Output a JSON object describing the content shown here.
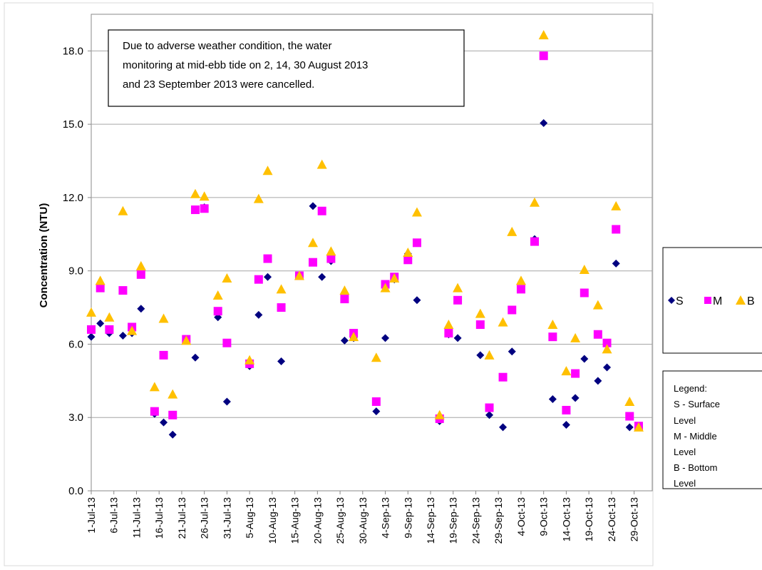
{
  "chart_data": {
    "type": "scatter",
    "title": "",
    "xlabel": "",
    "ylabel": "Concentration (NTU)",
    "ylim": [
      0,
      19.5
    ],
    "y_ticks": [
      "0.0",
      "3.0",
      "6.0",
      "9.0",
      "12.0",
      "15.0",
      "18.0"
    ],
    "y_tick_values": [
      0,
      3,
      6,
      9,
      12,
      15,
      18
    ],
    "grid": "horizontal",
    "x_range": [
      "2013-07-01",
      "2013-11-02"
    ],
    "x_ticks": [
      "1-Jul-13",
      "6-Jul-13",
      "11-Jul-13",
      "16-Jul-13",
      "21-Jul-13",
      "26-Jul-13",
      "31-Jul-13",
      "5-Aug-13",
      "10-Aug-13",
      "15-Aug-13",
      "20-Aug-13",
      "25-Aug-13",
      "30-Aug-13",
      "4-Sep-13",
      "9-Sep-13",
      "14-Sep-13",
      "19-Sep-13",
      "24-Sep-13",
      "29-Sep-13",
      "4-Oct-13",
      "9-Oct-13",
      "14-Oct-13",
      "19-Oct-13",
      "24-Oct-13",
      "29-Oct-13"
    ],
    "x_tick_dates": [
      "2013-07-01",
      "2013-07-06",
      "2013-07-11",
      "2013-07-16",
      "2013-07-21",
      "2013-07-26",
      "2013-07-31",
      "2013-08-05",
      "2013-08-10",
      "2013-08-15",
      "2013-08-20",
      "2013-08-25",
      "2013-08-30",
      "2013-09-04",
      "2013-09-09",
      "2013-09-14",
      "2013-09-19",
      "2013-09-24",
      "2013-09-29",
      "2013-10-04",
      "2013-10-09",
      "2013-10-14",
      "2013-10-19",
      "2013-10-24",
      "2013-10-29"
    ],
    "dates": [
      "2013-07-01",
      "2013-07-03",
      "2013-07-05",
      "2013-07-08",
      "2013-07-10",
      "2013-07-12",
      "2013-07-15",
      "2013-07-17",
      "2013-07-19",
      "2013-07-22",
      "2013-07-24",
      "2013-07-26",
      "2013-07-29",
      "2013-07-31",
      "2013-08-05",
      "2013-08-07",
      "2013-08-09",
      "2013-08-12",
      "2013-08-16",
      "2013-08-19",
      "2013-08-21",
      "2013-08-23",
      "2013-08-26",
      "2013-08-28",
      "2013-09-02",
      "2013-09-04",
      "2013-09-06",
      "2013-09-09",
      "2013-09-11",
      "2013-09-16",
      "2013-09-18",
      "2013-09-20",
      "2013-09-25",
      "2013-09-27",
      "2013-09-30",
      "2013-10-02",
      "2013-10-04",
      "2013-10-07",
      "2013-10-09",
      "2013-10-11",
      "2013-10-14",
      "2013-10-16",
      "2013-10-18",
      "2013-10-21",
      "2013-10-23",
      "2013-10-25",
      "2013-10-28",
      "2013-10-30"
    ],
    "series": [
      {
        "name": "S",
        "marker": "diamond",
        "color": "#000080",
        "values": [
          6.3,
          6.85,
          6.45,
          6.35,
          6.45,
          7.45,
          3.15,
          2.8,
          2.3,
          6.2,
          5.45,
          11.6,
          7.1,
          3.65,
          5.1,
          7.2,
          8.75,
          5.3,
          8.8,
          11.65,
          8.75,
          9.4,
          6.15,
          6.25,
          3.25,
          6.25,
          8.65,
          9.7,
          7.8,
          2.85,
          6.4,
          6.25,
          5.55,
          3.1,
          2.6,
          5.7,
          8.25,
          10.3,
          15.05,
          3.75,
          2.7,
          3.8,
          5.4,
          4.5,
          5.05,
          9.3,
          2.6,
          2.6
        ]
      },
      {
        "name": "M",
        "marker": "square",
        "color": "#ff00ff",
        "values": [
          6.6,
          8.3,
          6.6,
          8.2,
          6.7,
          8.85,
          3.25,
          5.55,
          3.1,
          6.2,
          11.5,
          11.55,
          7.35,
          6.05,
          5.2,
          8.65,
          9.5,
          7.5,
          8.8,
          9.35,
          11.45,
          9.5,
          7.85,
          6.45,
          3.65,
          8.45,
          8.75,
          9.45,
          10.15,
          2.95,
          6.45,
          7.8,
          6.8,
          3.4,
          4.65,
          7.4,
          8.25,
          10.2,
          17.8,
          6.3,
          3.3,
          4.8,
          8.1,
          6.4,
          6.05,
          10.7,
          3.05,
          2.65
        ]
      },
      {
        "name": "B",
        "marker": "triangle",
        "color": "#ffc000",
        "values": [
          7.3,
          8.6,
          7.1,
          11.45,
          6.55,
          9.2,
          4.25,
          7.05,
          3.95,
          6.15,
          12.15,
          12.05,
          8.0,
          8.7,
          5.35,
          11.95,
          13.1,
          8.25,
          8.8,
          10.15,
          13.35,
          9.8,
          8.2,
          6.3,
          5.45,
          8.3,
          8.7,
          9.75,
          11.4,
          3.1,
          6.8,
          8.3,
          7.25,
          5.55,
          6.9,
          10.6,
          8.6,
          11.8,
          18.65,
          6.8,
          4.9,
          6.25,
          9.05,
          7.6,
          5.8,
          11.65,
          3.65,
          2.6
        ]
      }
    ],
    "annotation": "Due  to adverse weather condition, the  water monitoring at mid-ebb tide on 2, 14, 30 August 2013 and 23 September 2013 were cancelled.",
    "annotation_lines": [
      "Due  to adverse weather condition, the  water",
      "monitoring at mid-ebb tide on 2, 14, 30 August 2013",
      "and 23 September 2013 were cancelled."
    ],
    "legend": {
      "placement": "right",
      "entries": [
        "S",
        "M",
        "B"
      ]
    },
    "legend_note_lines": [
      "Legend:",
      "S - Surface",
      "Level",
      "M - Middle",
      "Level",
      "B - Bottom",
      "Level"
    ]
  }
}
